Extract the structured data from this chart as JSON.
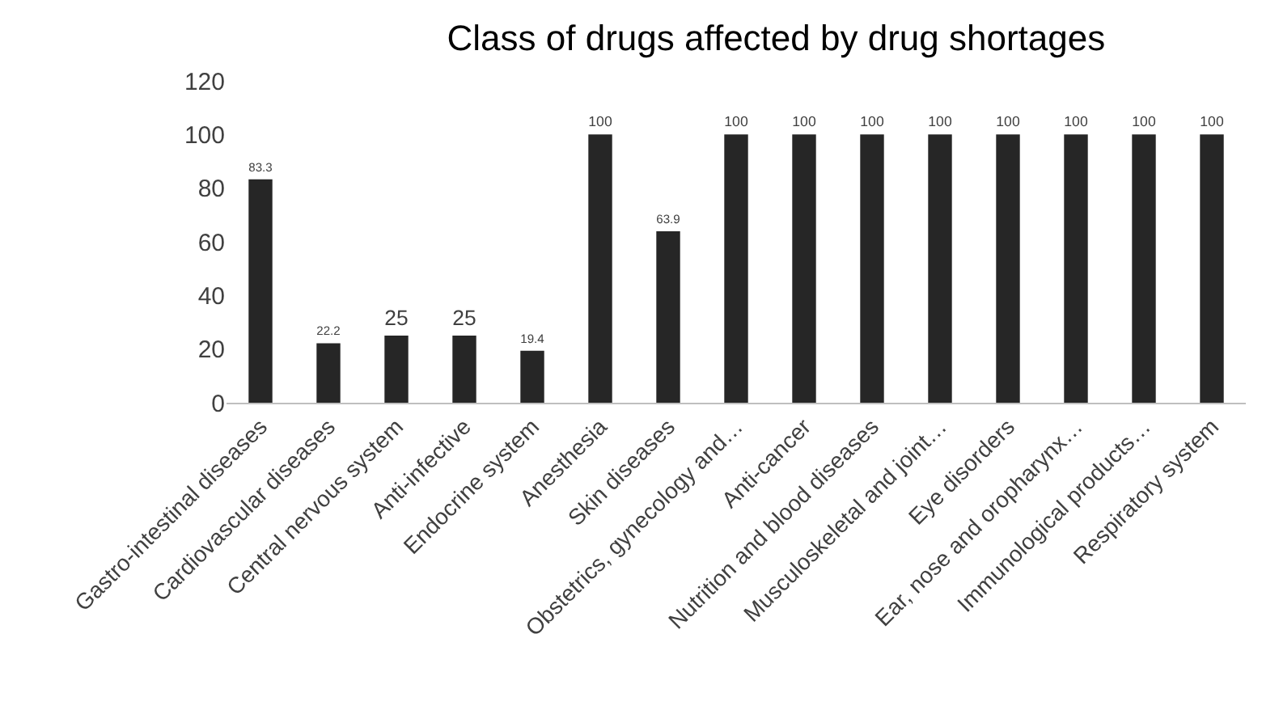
{
  "chart_data": {
    "type": "bar",
    "title": "Class of drugs affected by drug shortages",
    "categories": [
      "Gastro-intestinal diseases",
      "Cardiovascular diseases",
      "Central nervous system",
      "Anti-infective",
      "Endocrine system",
      "Anesthesia",
      "Skin diseases",
      "Obstetrics, gynecology and…",
      "Anti-cancer",
      "Nutrition and blood diseases",
      "Musculoskeletal and joint…",
      "Eye disorders",
      "Ear, nose and oropharynx…",
      "Immunological products…",
      "Respiratory system"
    ],
    "values": [
      83.3,
      22.2,
      25,
      25,
      19.4,
      100,
      63.9,
      100,
      100,
      100,
      100,
      100,
      100,
      100,
      100
    ],
    "color": "#262626",
    "ylim": [
      0,
      120
    ],
    "yticks": [
      0,
      20,
      40,
      60,
      80,
      100,
      120
    ],
    "grid": false,
    "data_labels": true
  }
}
